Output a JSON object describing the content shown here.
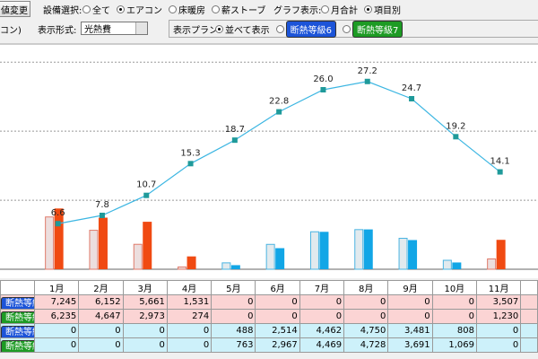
{
  "toolbar": {
    "button": "値変更",
    "equipment_label": "設備選択:",
    "equipment_options": [
      "全て",
      "エアコン",
      "床暖房",
      "薪ストーブ"
    ],
    "equipment_selected": 1,
    "graph_label": "グラフ表示:",
    "graph_options": [
      "月合計",
      "項目別"
    ],
    "graph_selected": 1,
    "subtitle": "コン)",
    "format_label": "表示形式:",
    "format_value": "光熱費",
    "plan_label": "表示プラン:",
    "plan_options": [
      "並べて表示",
      "断熱等級6",
      "断熱等級7"
    ],
    "plan_selected": 0
  },
  "chart_data": {
    "type": "combo",
    "categories": [
      "1月",
      "2月",
      "3月",
      "4月",
      "5月",
      "6月",
      "7月",
      "8月",
      "9月",
      "10月",
      "11月"
    ],
    "ylim": [
      0,
      26750
    ],
    "y2lim": [
      0,
      32.5
    ],
    "y2ticks": [
      10,
      20,
      30
    ],
    "grid": true,
    "series": [
      {
        "name": "断熱等級6",
        "color": "#f04a12",
        "values": [
          7245,
          6152,
          5661,
          1531,
          0,
          0,
          0,
          0,
          0,
          0,
          3507
        ],
        "value_labels": [
          "7,245",
          "6,152",
          "5,661",
          "1,531",
          "0",
          "0",
          "0",
          "0",
          "0",
          "0",
          "3,507"
        ]
      },
      {
        "name": "断熱等級7",
        "color": "#ecdede",
        "values": [
          6235,
          4647,
          2973,
          274,
          0,
          0,
          0,
          0,
          0,
          0,
          1230
        ],
        "value_labels": [
          "6,235",
          "4,647",
          "2,973",
          "274",
          "0",
          "0",
          "0",
          "0",
          "0",
          "0",
          "1,230"
        ]
      },
      {
        "name": "断熱等級6",
        "color": "#12a6e6",
        "values": [
          0,
          0,
          0,
          0,
          488,
          2514,
          4462,
          4750,
          3481,
          808,
          0
        ],
        "value_labels": [
          "0",
          "0",
          "0",
          "0",
          "488",
          "2,514",
          "4,462",
          "4,750",
          "3,481",
          "808",
          "0"
        ]
      },
      {
        "name": "断熱等級7",
        "color": "#e2eaee",
        "values": [
          0,
          0,
          0,
          0,
          763,
          2967,
          4469,
          4728,
          3691,
          1069,
          0
        ],
        "value_labels": [
          "0",
          "0",
          "0",
          "0",
          "763",
          "2,967",
          "4,469",
          "4,728",
          "3,691",
          "1,069",
          "0"
        ]
      },
      {
        "axis": "y2",
        "color": "#3cb6e2",
        "values": [
          6.6,
          7.8,
          10.7,
          15.3,
          18.7,
          22.8,
          26.0,
          27.2,
          24.7,
          19.2,
          14.1
        ],
        "value_labels": [
          "6.6",
          "7.8",
          "10.7",
          "15.3",
          "18.7",
          "22.8",
          "26.0",
          "27.2",
          "24.7",
          "19.2",
          "14.1"
        ]
      }
    ]
  }
}
